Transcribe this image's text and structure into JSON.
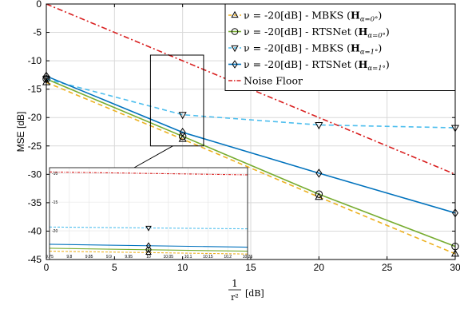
{
  "chart_data": {
    "type": "line",
    "xlabel_numerator": "1",
    "xlabel_denominator": "r²",
    "xlabel_unit": "[dB]",
    "ylabel": "MSE [dB]",
    "xlim": [
      0,
      30
    ],
    "ylim": [
      -45,
      0
    ],
    "xticks": [
      0,
      5,
      10,
      15,
      20,
      25,
      30
    ],
    "yticks": [
      0,
      -5,
      -10,
      -15,
      -20,
      -25,
      -30,
      -35,
      -40,
      -45
    ],
    "grid": true,
    "legend_position": "top-right",
    "series": [
      {
        "name": "ν = -20[dB] - MBKS (Hα=0°)",
        "legend_main": "ν = -20[dB] - MBKS (",
        "legend_H": "H",
        "legend_sub": "α=0°",
        "legend_close": ")",
        "color": "#EDB120",
        "dash": "dashed",
        "marker": "triangle-up",
        "x": [
          0,
          10,
          20,
          30
        ],
        "y": [
          -13.8,
          -23.8,
          -34.0,
          -44.0
        ]
      },
      {
        "name": "ν = -20[dB] - RTSNet (Hα=0°)",
        "legend_main": "ν = -20[dB] - RTSNet (",
        "legend_H": "H",
        "legend_sub": "α=0°",
        "legend_close": ")",
        "color": "#77AC30",
        "dash": "solid",
        "marker": "circle",
        "x": [
          0,
          10,
          20,
          30
        ],
        "y": [
          -13.2,
          -23.3,
          -33.5,
          -42.7
        ]
      },
      {
        "name": "ν = -20[dB] - MBKS (Hα=1°)",
        "legend_main": "ν = -20[dB] - MBKS (",
        "legend_H": "H",
        "legend_sub": "α=1°",
        "legend_close": ")",
        "color": "#4DBEEE",
        "dash": "dashed",
        "marker": "triangle-down",
        "x": [
          0,
          10,
          20,
          30
        ],
        "y": [
          -13.2,
          -19.5,
          -21.3,
          -21.8
        ]
      },
      {
        "name": "ν = -20[dB] - RTSNet (Hα=1°)",
        "legend_main": "ν = -20[dB] - RTSNet (",
        "legend_H": "H",
        "legend_sub": "α=1°",
        "legend_close": ")",
        "color": "#0072BD",
        "dash": "solid",
        "marker": "diamond",
        "x": [
          0,
          10,
          20,
          30
        ],
        "y": [
          -12.7,
          -22.6,
          -29.8,
          -36.8
        ]
      },
      {
        "name": "Noise Floor",
        "legend_main": "Noise Floor",
        "color": "#D92020",
        "dash": "dashdot",
        "marker": "none",
        "x": [
          0,
          30
        ],
        "y": [
          0,
          -30
        ]
      }
    ],
    "inset": {
      "x_range": [
        9.75,
        10.25
      ],
      "y_range": [
        -25,
        -9
      ],
      "xticks": [
        9.75,
        9.8,
        9.85,
        9.9,
        9.95,
        10,
        10.05,
        10.1,
        10.15,
        10.2,
        10.25
      ],
      "xtick_labels": [
        "9.75",
        "9.8",
        "9.85",
        "9.9",
        "9.95",
        "10",
        "10.05",
        "10.1",
        "10.15",
        "10.2",
        "10.25"
      ],
      "yticks": [
        -10,
        -15,
        -20
      ],
      "ytick_labels": [
        "-10",
        "-15",
        "-20"
      ]
    }
  }
}
